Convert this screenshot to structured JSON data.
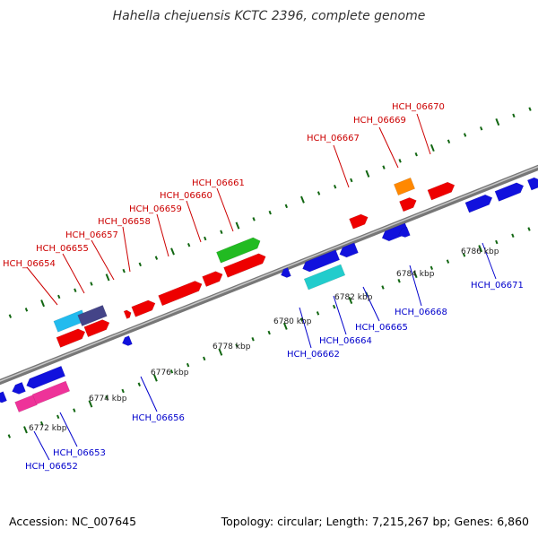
{
  "title": "Hahella chejuensis KCTC 2396, complete genome",
  "accession": "Accession: NC_007645",
  "genome_info": "Topology: circular; Length: 7,215,267 bp; Genes: 6,860",
  "colors": {
    "backbone": "#909090",
    "red": "#ee0000",
    "blue": "#1111dd",
    "green": "#22bb22",
    "orange": "#ff8800",
    "cyan": "#22bbee",
    "slate": "#444488",
    "teal": "#22cccc",
    "pink": "#ee3399",
    "tick": "#116611",
    "top_label": "#cc0000",
    "bottom_label": "#0000cc"
  },
  "scale_labels": [
    "6772 kbp",
    "6774 kbp",
    "6776 kbp",
    "6778 kbp",
    "6780 kbp",
    "6782 kbp",
    "6784 kbp",
    "6786 kbp"
  ],
  "top_gene_labels": [
    "HCH_06654",
    "HCH_06655",
    "HCH_06657",
    "HCH_06658",
    "HCH_06659",
    "HCH_06660",
    "HCH_06661",
    "HCH_06667",
    "HCH_06669",
    "HCH_06670"
  ],
  "bottom_gene_labels": [
    "HCH_06652",
    "HCH_06653",
    "HCH_06656",
    "HCH_06662",
    "HCH_06664",
    "HCH_06665",
    "HCH_06668",
    "HCH_06671"
  ],
  "features": [
    {
      "color": "cyan",
      "strand": "top",
      "lane": 2
    },
    {
      "color": "slate",
      "strand": "top",
      "lane": 2
    },
    {
      "color": "red",
      "strand": "top",
      "lane": 1
    },
    {
      "color": "red",
      "strand": "top",
      "lane": 1
    },
    {
      "color": "red",
      "strand": "top",
      "lane": 1
    },
    {
      "color": "red",
      "strand": "top",
      "lane": 1
    },
    {
      "color": "red",
      "strand": "top",
      "lane": 1
    },
    {
      "color": "red",
      "strand": "top",
      "lane": 1
    },
    {
      "color": "green",
      "strand": "top",
      "lane": 2
    },
    {
      "color": "red",
      "strand": "top",
      "lane": 1
    },
    {
      "color": "red",
      "strand": "top",
      "lane": 1
    },
    {
      "color": "orange",
      "strand": "top",
      "lane": 2
    },
    {
      "color": "red",
      "strand": "top",
      "lane": 1
    },
    {
      "color": "red",
      "strand": "top",
      "lane": 1
    },
    {
      "color": "blue",
      "strand": "top",
      "lane": 1
    },
    {
      "color": "blue",
      "strand": "top",
      "lane": 1
    },
    {
      "color": "blue",
      "strand": "top",
      "lane": 1
    },
    {
      "color": "blue",
      "strand": "bottom",
      "lane": 1
    },
    {
      "color": "blue",
      "strand": "bottom",
      "lane": 1
    },
    {
      "color": "blue",
      "strand": "bottom",
      "lane": 1
    },
    {
      "color": "pink",
      "strand": "bottom",
      "lane": 2
    },
    {
      "color": "pink",
      "strand": "bottom",
      "lane": 2
    },
    {
      "color": "blue",
      "strand": "bottom",
      "lane": 1
    },
    {
      "color": "blue",
      "strand": "bottom",
      "lane": 1
    },
    {
      "color": "blue",
      "strand": "bottom",
      "lane": 1
    },
    {
      "color": "blue",
      "strand": "bottom",
      "lane": 1
    },
    {
      "color": "teal",
      "strand": "bottom",
      "lane": 2
    },
    {
      "color": "blue",
      "strand": "bottom",
      "lane": 1
    },
    {
      "color": "blue",
      "strand": "bottom",
      "lane": 1
    }
  ]
}
